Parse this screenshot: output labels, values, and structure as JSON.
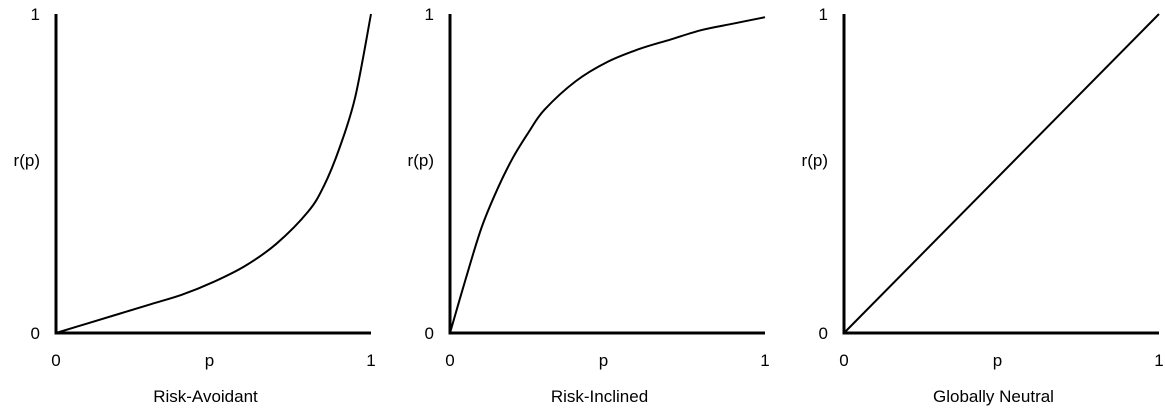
{
  "chart_data": [
    {
      "type": "line",
      "title": "Risk-Avoidant",
      "xlabel": "p",
      "ylabel": "r(p)",
      "xlim": [
        0,
        1
      ],
      "ylim": [
        0,
        1
      ],
      "x_ticks": [
        "0",
        "1"
      ],
      "y_ticks": [
        "0",
        "1"
      ],
      "grid": false,
      "series": [
        {
          "x": [
            0,
            0.1,
            0.2,
            0.3,
            0.4,
            0.5,
            0.6,
            0.7,
            0.8,
            0.85,
            0.9,
            0.95,
            1.0
          ],
          "y": [
            0,
            0.03,
            0.06,
            0.09,
            0.12,
            0.16,
            0.21,
            0.28,
            0.38,
            0.46,
            0.58,
            0.74,
            1.0
          ]
        }
      ]
    },
    {
      "type": "line",
      "title": "Risk-Inclined",
      "xlabel": "p",
      "ylabel": "r(p)",
      "xlim": [
        0,
        1
      ],
      "ylim": [
        0,
        1
      ],
      "x_ticks": [
        "0",
        "1"
      ],
      "y_ticks": [
        "0",
        "1"
      ],
      "grid": false,
      "series": [
        {
          "x": [
            0,
            0.05,
            0.1,
            0.15,
            0.2,
            0.25,
            0.3,
            0.4,
            0.5,
            0.6,
            0.7,
            0.8,
            0.9,
            1.0
          ],
          "y": [
            0,
            0.17,
            0.33,
            0.45,
            0.55,
            0.63,
            0.7,
            0.79,
            0.85,
            0.89,
            0.92,
            0.95,
            0.97,
            0.99
          ]
        }
      ]
    },
    {
      "type": "line",
      "title": "Globally Neutral",
      "xlabel": "p",
      "ylabel": "r(p)",
      "xlim": [
        0,
        1
      ],
      "ylim": [
        0,
        1
      ],
      "x_ticks": [
        "0",
        "1"
      ],
      "y_ticks": [
        "0",
        "1"
      ],
      "grid": false,
      "series": [
        {
          "x": [
            0,
            1
          ],
          "y": [
            0,
            1
          ]
        }
      ]
    }
  ]
}
